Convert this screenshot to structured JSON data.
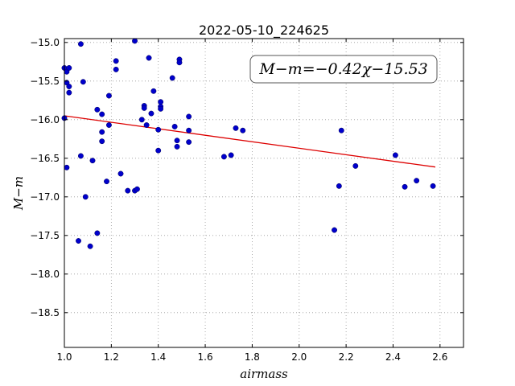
{
  "chart_data": {
    "type": "scatter",
    "title": "2022-05-10_224625",
    "xlabel": "airmass",
    "ylabel": "M−m",
    "xlim": [
      1.0,
      2.7
    ],
    "ylim": [
      -18.95,
      -14.95
    ],
    "x_ticks": [
      1.0,
      1.2,
      1.4,
      1.6,
      1.8,
      2.0,
      2.2,
      2.4,
      2.6
    ],
    "x_tick_labels": [
      "1.0",
      "1.2",
      "1.4",
      "1.6",
      "1.8",
      "2.0",
      "2.2",
      "2.4",
      "2.6"
    ],
    "y_ticks": [
      -15.0,
      -15.5,
      -16.0,
      -16.5,
      -17.0,
      -17.5,
      -18.0,
      -18.5
    ],
    "y_tick_labels": [
      "−15.0",
      "−15.5",
      "−16.0",
      "−16.5",
      "−17.0",
      "−17.5",
      "−18.0",
      "−18.5"
    ],
    "grid": true,
    "annotation": "M−m=−0.42χ−15.53",
    "point_color": "#0000cc",
    "fit_color": "#dd0000",
    "fit": {
      "slope": -0.42,
      "intercept": -15.53,
      "x_range": [
        1.0,
        2.58
      ]
    },
    "points": [
      [
        1.0,
        -15.33
      ],
      [
        1.01,
        -15.38
      ],
      [
        1.02,
        -15.33
      ],
      [
        1.01,
        -15.52
      ],
      [
        1.02,
        -15.57
      ],
      [
        1.02,
        -15.65
      ],
      [
        1.0,
        -15.98
      ],
      [
        1.01,
        -16.62
      ],
      [
        1.07,
        -15.02
      ],
      [
        1.08,
        -15.51
      ],
      [
        1.07,
        -16.47
      ],
      [
        1.09,
        -17.0
      ],
      [
        1.06,
        -17.57
      ],
      [
        1.11,
        -17.64
      ],
      [
        1.14,
        -17.47
      ],
      [
        1.12,
        -16.53
      ],
      [
        1.14,
        -15.87
      ],
      [
        1.16,
        -15.93
      ],
      [
        1.16,
        -16.16
      ],
      [
        1.16,
        -16.28
      ],
      [
        1.18,
        -16.8
      ],
      [
        1.19,
        -16.07
      ],
      [
        1.19,
        -15.69
      ],
      [
        1.22,
        -15.35
      ],
      [
        1.22,
        -15.24
      ],
      [
        1.24,
        -16.7
      ],
      [
        1.27,
        -16.92
      ],
      [
        1.3,
        -16.92
      ],
      [
        1.31,
        -16.9
      ],
      [
        1.3,
        -14.98
      ],
      [
        1.33,
        -16.0
      ],
      [
        1.34,
        -15.82
      ],
      [
        1.34,
        -15.85
      ],
      [
        1.35,
        -16.07
      ],
      [
        1.36,
        -15.2
      ],
      [
        1.37,
        -15.92
      ],
      [
        1.38,
        -15.63
      ],
      [
        1.4,
        -16.13
      ],
      [
        1.4,
        -16.4
      ],
      [
        1.41,
        -15.77
      ],
      [
        1.41,
        -15.83
      ],
      [
        1.41,
        -15.86
      ],
      [
        1.46,
        -15.46
      ],
      [
        1.47,
        -16.09
      ],
      [
        1.48,
        -16.27
      ],
      [
        1.48,
        -16.35
      ],
      [
        1.49,
        -15.22
      ],
      [
        1.49,
        -15.26
      ],
      [
        1.53,
        -15.96
      ],
      [
        1.53,
        -16.14
      ],
      [
        1.53,
        -16.29
      ],
      [
        1.68,
        -16.48
      ],
      [
        1.71,
        -16.46
      ],
      [
        1.73,
        -16.11
      ],
      [
        1.76,
        -16.14
      ],
      [
        2.15,
        -17.43
      ],
      [
        2.17,
        -16.86
      ],
      [
        2.18,
        -16.14
      ],
      [
        2.24,
        -16.6
      ],
      [
        2.41,
        -16.46
      ],
      [
        2.45,
        -16.87
      ],
      [
        2.5,
        -16.79
      ],
      [
        2.57,
        -16.86
      ]
    ]
  }
}
